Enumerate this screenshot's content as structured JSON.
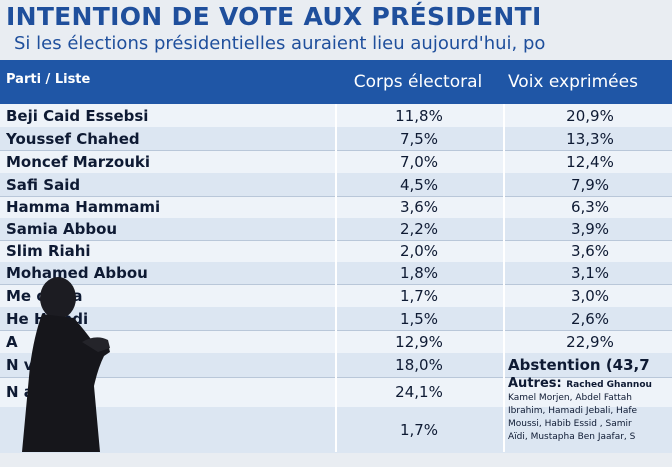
{
  "title": "INTENTION DE VOTE AUX PRÉSIDENTI",
  "subtitle": "Si les élections présidentielles auraient lieu aujourd'hui, po",
  "table": {
    "headers": [
      "Parti / Liste",
      "Corps électoral",
      "Voix exprimées"
    ],
    "rows": [
      {
        "name": "Beji Caid Essebsi",
        "corps": "11,8%",
        "voix": "20,9%"
      },
      {
        "name": "Youssef Chahed",
        "corps": "7,5%",
        "voix": "13,3%"
      },
      {
        "name": "Moncef Marzouki",
        "corps": "7,0%",
        "voix": "12,4%"
      },
      {
        "name": "Safi Said",
        "corps": "4,5%",
        "voix": "7,9%"
      },
      {
        "name": "Hamma Hammami",
        "corps": "3,6%",
        "voix": "6,3%"
      },
      {
        "name": "Samia Abbou",
        "corps": "2,2%",
        "voix": "3,9%"
      },
      {
        "name": "Slim Riahi",
        "corps": "2,0%",
        "voix": "3,6%"
      },
      {
        "name": "Mohamed Abbou",
        "corps": "1,8%",
        "voix": "3,1%"
      },
      {
        "name": "Me    omaa",
        "corps": "1,7%",
        "voix": "3,0%"
      },
      {
        "name": "He      Hamdi",
        "corps": "1,5%",
        "voix": "2,6%"
      },
      {
        "name": "A",
        "corps": "12,9%",
        "voix": "22,9%"
      },
      {
        "name": "N            voter",
        "corps": "18,0%",
        "voix": "Abstention (43,7"
      },
      {
        "name": "N          as",
        "corps": "24,1%",
        "voix": ""
      },
      {
        "name": "",
        "corps": "1,7%",
        "voix": ""
      }
    ],
    "autres_label": "Autres:",
    "autres_lines": [
      "Rached Ghannou",
      "Kamel Morjen, Abdel Fattah",
      "Ibrahim, Hamadi Jebali, Hafe",
      "Moussi, Habib Essid , Samir",
      "Aïdi, Mustapha Ben Jaafar, S"
    ]
  }
}
